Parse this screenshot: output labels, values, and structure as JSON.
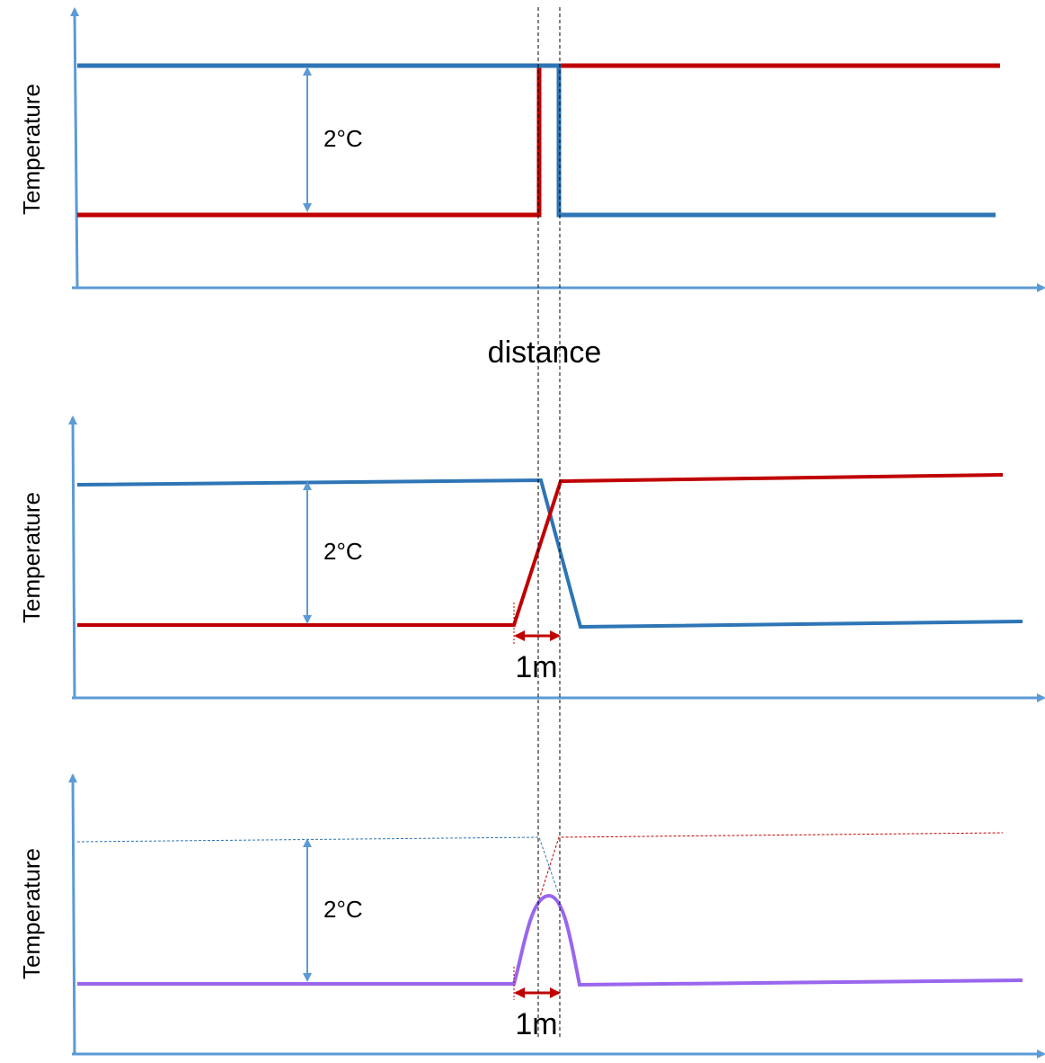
{
  "labels": {
    "y_axis": "Temperature",
    "x_axis": "distance",
    "difference": "2°C",
    "transition_width": "1m"
  },
  "colors": {
    "axis": "#5b9bd5",
    "blue_line": "#2e75b6",
    "red_line": "#c00000",
    "purple_line": "#9966ee",
    "guide": "#000000",
    "dim_arrow": "#5b9bd5",
    "width_arrow": "#c00000"
  },
  "panels": [
    {
      "type": "step",
      "y_label": "Temperature",
      "diff_label": "2°C"
    },
    {
      "type": "linear-transition",
      "y_label": "Temperature",
      "diff_label": "2°C",
      "width_label": "1m"
    },
    {
      "type": "peak",
      "y_label": "Temperature",
      "diff_label": "2°C",
      "width_label": "1m"
    }
  ]
}
